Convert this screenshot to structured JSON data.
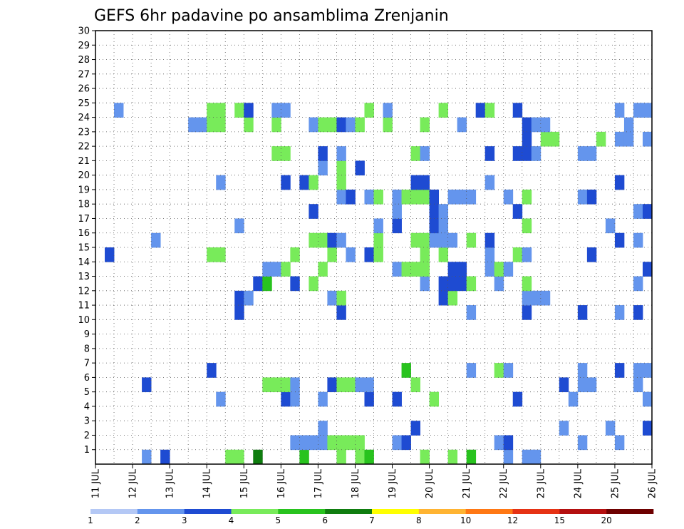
{
  "chart_data": {
    "type": "heatmap",
    "title": "GEFS 6hr padavine po ansamblima Zrenjanin",
    "x_tick_labels": [
      "11 JUL",
      "12 JUL",
      "13 JUL",
      "14 JUL",
      "15 JUL",
      "16 JUL",
      "17 JUL",
      "18 JUL",
      "19 JUL",
      "20 JUL",
      "21 JUL",
      "22 JUL",
      "23 JUL",
      "24 JUL",
      "25 JUL",
      "26 JUL"
    ],
    "y_tick_labels": [
      "1",
      "2",
      "3",
      "4",
      "5",
      "6",
      "7",
      "8",
      "9",
      "10",
      "11",
      "12",
      "13",
      "14",
      "15",
      "16",
      "17",
      "18",
      "19",
      "20",
      "21",
      "22",
      "23",
      "24",
      "25",
      "26",
      "27",
      "28",
      "29",
      "30"
    ],
    "xlim": [
      0,
      60
    ],
    "ylim": [
      0,
      30
    ],
    "legend_levels": [
      "1",
      "2",
      "3",
      "4",
      "5",
      "6",
      "7",
      "8",
      "10",
      "12",
      "15",
      "20"
    ],
    "level_colors": [
      "#b4c8f5",
      "#6495ed",
      "#1e4bd2",
      "#78eb5a",
      "#28c31e",
      "#0f7d0f",
      "#ffff00",
      "#ffb432",
      "#ff7814",
      "#e63214",
      "#b40f0f",
      "#6e0000"
    ],
    "grid": true,
    "cells": [
      [
        5,
        1,
        1
      ],
      [
        7,
        1,
        2
      ],
      [
        14,
        1,
        3
      ],
      [
        15,
        1,
        3
      ],
      [
        17,
        1,
        5
      ],
      [
        22,
        1,
        4
      ],
      [
        26,
        1,
        3
      ],
      [
        28,
        1,
        3
      ],
      [
        29,
        1,
        4
      ],
      [
        35,
        1,
        3
      ],
      [
        38,
        1,
        3
      ],
      [
        40,
        1,
        4
      ],
      [
        44,
        1,
        1
      ],
      [
        46,
        1,
        1
      ],
      [
        47,
        1,
        1
      ],
      [
        21,
        2,
        1
      ],
      [
        22,
        2,
        1
      ],
      [
        23,
        2,
        1
      ],
      [
        24,
        2,
        1
      ],
      [
        25,
        2,
        3
      ],
      [
        26,
        2,
        3
      ],
      [
        27,
        2,
        3
      ],
      [
        28,
        2,
        3
      ],
      [
        32,
        2,
        1
      ],
      [
        33,
        2,
        2
      ],
      [
        43,
        2,
        1
      ],
      [
        44,
        2,
        2
      ],
      [
        52,
        2,
        1
      ],
      [
        56,
        2,
        1
      ],
      [
        24,
        3,
        1
      ],
      [
        34,
        3,
        2
      ],
      [
        50,
        3,
        1
      ],
      [
        55,
        3,
        1
      ],
      [
        59,
        3,
        2
      ],
      [
        13,
        5,
        1
      ],
      [
        20,
        5,
        2
      ],
      [
        21,
        5,
        1
      ],
      [
        24,
        5,
        1
      ],
      [
        29,
        5,
        2
      ],
      [
        32,
        5,
        2
      ],
      [
        36,
        5,
        3
      ],
      [
        45,
        5,
        2
      ],
      [
        51,
        5,
        1
      ],
      [
        59,
        5,
        1
      ],
      [
        5,
        6,
        2
      ],
      [
        18,
        6,
        3
      ],
      [
        19,
        6,
        3
      ],
      [
        20,
        6,
        3
      ],
      [
        21,
        6,
        1
      ],
      [
        25,
        6,
        2
      ],
      [
        26,
        6,
        3
      ],
      [
        27,
        6,
        3
      ],
      [
        28,
        6,
        1
      ],
      [
        29,
        6,
        1
      ],
      [
        34,
        6,
        3
      ],
      [
        50,
        6,
        2
      ],
      [
        52,
        6,
        1
      ],
      [
        53,
        6,
        1
      ],
      [
        58,
        6,
        1
      ],
      [
        12,
        7,
        2
      ],
      [
        33,
        7,
        4
      ],
      [
        40,
        7,
        1
      ],
      [
        43,
        7,
        3
      ],
      [
        44,
        7,
        1
      ],
      [
        52,
        7,
        1
      ],
      [
        56,
        7,
        2
      ],
      [
        58,
        7,
        1
      ],
      [
        59,
        7,
        1
      ],
      [
        15,
        11,
        2
      ],
      [
        26,
        11,
        2
      ],
      [
        40,
        11,
        1
      ],
      [
        46,
        11,
        2
      ],
      [
        52,
        11,
        2
      ],
      [
        56,
        11,
        1
      ],
      [
        58,
        11,
        2
      ],
      [
        15,
        12,
        2
      ],
      [
        16,
        12,
        1
      ],
      [
        25,
        12,
        1
      ],
      [
        26,
        12,
        3
      ],
      [
        37,
        12,
        2
      ],
      [
        38,
        12,
        3
      ],
      [
        46,
        12,
        1
      ],
      [
        47,
        12,
        1
      ],
      [
        48,
        12,
        1
      ],
      [
        17,
        13,
        2
      ],
      [
        18,
        13,
        4
      ],
      [
        21,
        13,
        2
      ],
      [
        23,
        13,
        3
      ],
      [
        35,
        13,
        1
      ],
      [
        37,
        13,
        2
      ],
      [
        38,
        13,
        2
      ],
      [
        39,
        13,
        2
      ],
      [
        40,
        13,
        3
      ],
      [
        43,
        13,
        1
      ],
      [
        46,
        13,
        3
      ],
      [
        58,
        13,
        1
      ],
      [
        18,
        14,
        1
      ],
      [
        19,
        14,
        1
      ],
      [
        20,
        14,
        3
      ],
      [
        24,
        14,
        3
      ],
      [
        32,
        14,
        1
      ],
      [
        33,
        14,
        3
      ],
      [
        34,
        14,
        3
      ],
      [
        35,
        14,
        3
      ],
      [
        38,
        14,
        2
      ],
      [
        39,
        14,
        2
      ],
      [
        42,
        14,
        1
      ],
      [
        43,
        14,
        3
      ],
      [
        44,
        14,
        1
      ],
      [
        59,
        14,
        2
      ],
      [
        1,
        15,
        2
      ],
      [
        12,
        15,
        3
      ],
      [
        13,
        15,
        3
      ],
      [
        21,
        15,
        3
      ],
      [
        25,
        15,
        3
      ],
      [
        27,
        15,
        1
      ],
      [
        29,
        15,
        2
      ],
      [
        30,
        15,
        3
      ],
      [
        35,
        15,
        3
      ],
      [
        37,
        15,
        3
      ],
      [
        42,
        15,
        1
      ],
      [
        45,
        15,
        3
      ],
      [
        46,
        15,
        1
      ],
      [
        53,
        15,
        2
      ],
      [
        6,
        16,
        1
      ],
      [
        23,
        16,
        3
      ],
      [
        24,
        16,
        3
      ],
      [
        25,
        16,
        2
      ],
      [
        26,
        16,
        1
      ],
      [
        30,
        16,
        3
      ],
      [
        34,
        16,
        3
      ],
      [
        35,
        16,
        3
      ],
      [
        36,
        16,
        1
      ],
      [
        37,
        16,
        1
      ],
      [
        38,
        16,
        1
      ],
      [
        40,
        16,
        3
      ],
      [
        42,
        16,
        2
      ],
      [
        56,
        16,
        2
      ],
      [
        58,
        16,
        1
      ],
      [
        15,
        17,
        1
      ],
      [
        30,
        17,
        1
      ],
      [
        32,
        17,
        2
      ],
      [
        36,
        17,
        2
      ],
      [
        37,
        17,
        1
      ],
      [
        46,
        17,
        3
      ],
      [
        55,
        17,
        1
      ],
      [
        23,
        18,
        2
      ],
      [
        32,
        18,
        1
      ],
      [
        36,
        18,
        2
      ],
      [
        37,
        18,
        1
      ],
      [
        45,
        18,
        2
      ],
      [
        58,
        18,
        1
      ],
      [
        59,
        18,
        2
      ],
      [
        26,
        19,
        1
      ],
      [
        27,
        19,
        2
      ],
      [
        29,
        19,
        1
      ],
      [
        30,
        19,
        3
      ],
      [
        32,
        19,
        1
      ],
      [
        33,
        19,
        3
      ],
      [
        34,
        19,
        3
      ],
      [
        35,
        19,
        3
      ],
      [
        36,
        19,
        2
      ],
      [
        38,
        19,
        1
      ],
      [
        39,
        19,
        1
      ],
      [
        40,
        19,
        1
      ],
      [
        44,
        19,
        1
      ],
      [
        46,
        19,
        3
      ],
      [
        52,
        19,
        1
      ],
      [
        53,
        19,
        2
      ],
      [
        13,
        20,
        1
      ],
      [
        20,
        20,
        2
      ],
      [
        22,
        20,
        2
      ],
      [
        23,
        20,
        3
      ],
      [
        26,
        20,
        3
      ],
      [
        34,
        20,
        2
      ],
      [
        35,
        20,
        2
      ],
      [
        42,
        20,
        1
      ],
      [
        56,
        20,
        2
      ],
      [
        24,
        21,
        1
      ],
      [
        26,
        21,
        3
      ],
      [
        28,
        21,
        2
      ],
      [
        19,
        22,
        3
      ],
      [
        20,
        22,
        3
      ],
      [
        24,
        22,
        2
      ],
      [
        26,
        22,
        1
      ],
      [
        34,
        22,
        3
      ],
      [
        35,
        22,
        1
      ],
      [
        42,
        22,
        2
      ],
      [
        45,
        22,
        2
      ],
      [
        46,
        22,
        2
      ],
      [
        47,
        22,
        1
      ],
      [
        52,
        22,
        1
      ],
      [
        53,
        22,
        1
      ],
      [
        46,
        23,
        2
      ],
      [
        48,
        23,
        3
      ],
      [
        49,
        23,
        3
      ],
      [
        54,
        23,
        3
      ],
      [
        56,
        23,
        1
      ],
      [
        57,
        23,
        1
      ],
      [
        59,
        23,
        1
      ],
      [
        10,
        24,
        1
      ],
      [
        11,
        24,
        1
      ],
      [
        12,
        24,
        3
      ],
      [
        13,
        24,
        3
      ],
      [
        16,
        24,
        3
      ],
      [
        19,
        24,
        3
      ],
      [
        23,
        24,
        1
      ],
      [
        24,
        24,
        3
      ],
      [
        25,
        24,
        3
      ],
      [
        26,
        24,
        2
      ],
      [
        27,
        24,
        1
      ],
      [
        28,
        24,
        3
      ],
      [
        31,
        24,
        3
      ],
      [
        35,
        24,
        3
      ],
      [
        39,
        24,
        1
      ],
      [
        46,
        24,
        2
      ],
      [
        47,
        24,
        1
      ],
      [
        48,
        24,
        1
      ],
      [
        57,
        24,
        1
      ],
      [
        2,
        25,
        1
      ],
      [
        12,
        25,
        3
      ],
      [
        13,
        25,
        3
      ],
      [
        15,
        25,
        3
      ],
      [
        16,
        25,
        2
      ],
      [
        19,
        25,
        1
      ],
      [
        20,
        25,
        1
      ],
      [
        29,
        25,
        3
      ],
      [
        31,
        25,
        1
      ],
      [
        37,
        25,
        3
      ],
      [
        41,
        25,
        2
      ],
      [
        42,
        25,
        3
      ],
      [
        45,
        25,
        2
      ],
      [
        56,
        25,
        1
      ],
      [
        58,
        25,
        1
      ],
      [
        59,
        25,
        1
      ]
    ]
  }
}
